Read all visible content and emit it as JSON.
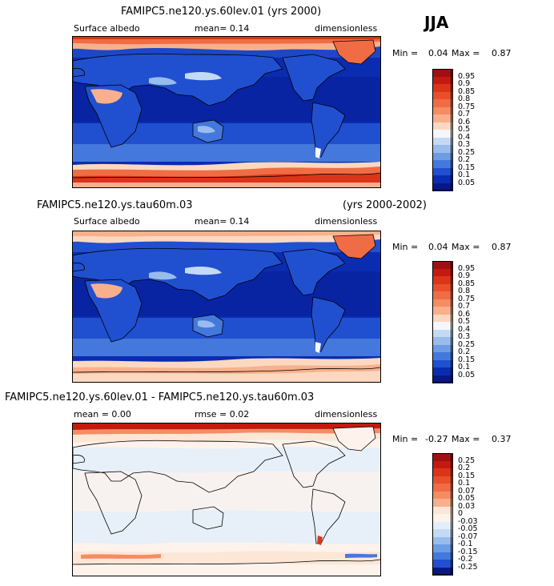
{
  "season": "JJA",
  "panels": [
    {
      "title": "FAMIPC5.ne120.ys.60lev.01 (yrs 2000)",
      "left_label": "Surface albedo",
      "mid_label": "mean=   0.14",
      "right_label": "dimensionless",
      "min_label": "Min =",
      "min_value": "0.04",
      "max_label": "Max =",
      "max_value": "0.87",
      "colorbar": [
        "0.95",
        "0.9",
        "0.85",
        "0.8",
        "0.75",
        "0.7",
        "0.6",
        "0.5",
        "0.4",
        "0.3",
        "0.25",
        "0.2",
        "0.15",
        "0.1",
        "0.05"
      ],
      "colors": [
        "#a01010",
        "#c21a10",
        "#dc3418",
        "#e8502c",
        "#f06c44",
        "#f48c64",
        "#f8b08c",
        "#fcd8c0",
        "#f4f6fa",
        "#c4daf4",
        "#98bcec",
        "#6c9ce4",
        "#4478dc",
        "#2050d0",
        "#0a2cb0",
        "#08188a"
      ]
    },
    {
      "title": "FAMIPC5.ne120.ys.tau60m.03",
      "title_right": "(yrs 2000-2002)",
      "left_label": "Surface albedo",
      "mid_label": "mean=   0.14",
      "right_label": "dimensionless",
      "min_label": "Min =",
      "min_value": "0.04",
      "max_label": "Max =",
      "max_value": "0.87",
      "colorbar": [
        "0.95",
        "0.9",
        "0.85",
        "0.8",
        "0.75",
        "0.7",
        "0.6",
        "0.5",
        "0.4",
        "0.3",
        "0.25",
        "0.2",
        "0.15",
        "0.1",
        "0.05"
      ],
      "colors": [
        "#a01010",
        "#c21a10",
        "#dc3418",
        "#e8502c",
        "#f06c44",
        "#f48c64",
        "#f8b08c",
        "#fcd8c0",
        "#f4f6fa",
        "#c4daf4",
        "#98bcec",
        "#6c9ce4",
        "#4478dc",
        "#2050d0",
        "#0a2cb0",
        "#08188a"
      ]
    },
    {
      "title": "FAMIPC5.ne120.ys.60lev.01 - FAMIPC5.ne120.ys.tau60m.03",
      "left_label": "mean =    0.00",
      "mid_label": "rmse =   0.02",
      "right_label": "dimensionless",
      "min_label": "Min =",
      "min_value": "-0.27",
      "max_label": "Max =",
      "max_value": "0.37",
      "colorbar": [
        "0.25",
        "0.2",
        "0.15",
        "0.1",
        "0.07",
        "0.05",
        "0.03",
        "0",
        "-0.03",
        "-0.05",
        "-0.07",
        "-0.1",
        "-0.15",
        "-0.2",
        "-0.25"
      ],
      "colors": [
        "#a01010",
        "#c21a10",
        "#dc3418",
        "#e8502c",
        "#f06c44",
        "#f48c64",
        "#f8b08c",
        "#fce6d6",
        "#fdf3ec",
        "#e4eefa",
        "#c4daf4",
        "#98bcec",
        "#6c9ce4",
        "#4478dc",
        "#2050d0",
        "#08188a"
      ]
    }
  ]
}
